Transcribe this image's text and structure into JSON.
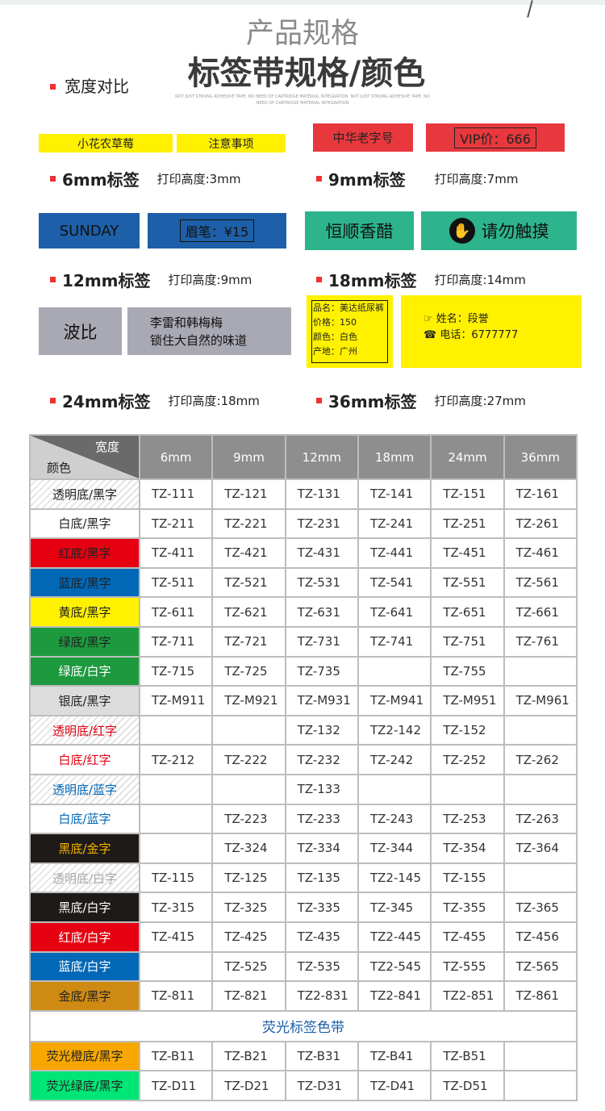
{
  "header": {
    "title": "产品规格",
    "subtitle": "标签带规格/颜色",
    "tagline": "NOT JUST STRONG ADHESIVE TAPE, NO NEED OF CARTRIDGE MATERIAL INTEGRATION. NOT JUST STRONG ADHESIVE TAPE, NO NEED OF CARTRIDGE MATERIAL INTEGRATION"
  },
  "section_label": "宽度对比",
  "samples": {
    "s6": [
      "小花农草莓",
      "注意事项"
    ],
    "s9": [
      "中华老字号",
      "VIP价：666"
    ],
    "s12": [
      "SUNDAY",
      "眉笔：¥15"
    ],
    "s18": [
      "恒顺香醋",
      "请勿触摸"
    ],
    "s24": [
      "波比",
      "李雷和韩梅梅\n锁住大自然的味道"
    ],
    "s36a": [
      "品名：美达纸尿裤",
      "价格：150",
      "颜色：白色",
      "产地：广州"
    ],
    "s36b": [
      "姓名：段誉",
      "电话：6777777"
    ]
  },
  "captions": [
    {
      "size": "6mm标签",
      "height": "打印高度:3mm"
    },
    {
      "size": "9mm标签",
      "height": "打印高度:7mm"
    },
    {
      "size": "12mm标签",
      "height": "打印高度:9mm"
    },
    {
      "size": "18mm标签",
      "height": "打印高度:14mm"
    },
    {
      "size": "24mm标签",
      "height": "打印高度:18mm"
    },
    {
      "size": "36mm标签",
      "height": "打印高度:27mm"
    }
  ],
  "table": {
    "corner_top": "宽度",
    "corner_bottom": "颜色",
    "columns": [
      "6mm",
      "9mm",
      "12mm",
      "18mm",
      "24mm",
      "36mm"
    ],
    "rows": [
      {
        "label": "透明底/黑字",
        "bg": "stripe",
        "fg": "#222",
        "cells": [
          "TZ-111",
          "TZ-121",
          "TZ-131",
          "TZ-141",
          "TZ-151",
          "TZ-161"
        ]
      },
      {
        "label": "白底/黑字",
        "bg": "#ffffff",
        "fg": "#222",
        "cells": [
          "TZ-211",
          "TZ-221",
          "TZ-231",
          "TZ-241",
          "TZ-251",
          "TZ-261"
        ]
      },
      {
        "label": "红底/黑字",
        "bg": "#e60012",
        "fg": "#222",
        "cells": [
          "TZ-411",
          "TZ-421",
          "TZ-431",
          "TZ-441",
          "TZ-451",
          "TZ-461"
        ]
      },
      {
        "label": "蓝底/黑字",
        "bg": "#0068b7",
        "fg": "#222",
        "cells": [
          "TZ-511",
          "TZ-521",
          "TZ-531",
          "TZ-541",
          "TZ-551",
          "TZ-561"
        ]
      },
      {
        "label": "黄底/黑字",
        "bg": "#fff100",
        "fg": "#222",
        "cells": [
          "TZ-611",
          "TZ-621",
          "TZ-631",
          "TZ-641",
          "TZ-651",
          "TZ-661"
        ]
      },
      {
        "label": "绿底/黑字",
        "bg": "#1d9a3e",
        "fg": "#222",
        "cells": [
          "TZ-711",
          "TZ-721",
          "TZ-731",
          "TZ-741",
          "TZ-751",
          "TZ-761"
        ]
      },
      {
        "label": "绿底/白字",
        "bg": "#1d9a3e",
        "fg": "#fff",
        "cells": [
          "TZ-715",
          "TZ-725",
          "TZ-735",
          "",
          "TZ-755",
          ""
        ]
      },
      {
        "label": "银底/黑字",
        "bg": "#dcdcdc",
        "fg": "#222",
        "cells": [
          "TZ-M911",
          "TZ-M921",
          "TZ-M931",
          "TZ-M941",
          "TZ-M951",
          "TZ-M961"
        ]
      },
      {
        "label": "透明底/红字",
        "bg": "stripe",
        "fg": "#e60012",
        "cells": [
          "",
          "",
          "TZ-132",
          "TZ2-142",
          "TZ-152",
          ""
        ]
      },
      {
        "label": "白底/红字",
        "bg": "#ffffff",
        "fg": "#e60012",
        "cells": [
          "TZ-212",
          "TZ-222",
          "TZ-232",
          "TZ-242",
          "TZ-252",
          "TZ-262"
        ]
      },
      {
        "label": "透明底/蓝字",
        "bg": "stripe",
        "fg": "#0068b7",
        "cells": [
          "",
          "",
          "TZ-133",
          "",
          "",
          ""
        ]
      },
      {
        "label": "白底/蓝字",
        "bg": "#ffffff",
        "fg": "#0068b7",
        "cells": [
          "",
          "TZ-223",
          "TZ-233",
          "TZ-243",
          "TZ-253",
          "TZ-263"
        ]
      },
      {
        "label": "黑底/金字",
        "bg": "#1e1a17",
        "fg": "#f5b300",
        "cells": [
          "",
          "TZ-324",
          "TZ-334",
          "TZ-344",
          "TZ-354",
          "TZ-364"
        ]
      },
      {
        "label": "透明底/白字",
        "bg": "stripe",
        "fg": "#aaa",
        "cells": [
          "TZ-115",
          "TZ-125",
          "TZ-135",
          "TZ2-145",
          "TZ-155",
          ""
        ]
      },
      {
        "label": "黑底/白字",
        "bg": "#1e1a17",
        "fg": "#fff",
        "cells": [
          "TZ-315",
          "TZ-325",
          "TZ-335",
          "TZ-345",
          "TZ-355",
          "TZ-365"
        ]
      },
      {
        "label": "红底/白字",
        "bg": "#e60012",
        "fg": "#fff",
        "cells": [
          "TZ-415",
          "TZ-425",
          "TZ-435",
          "TZ2-445",
          "TZ-455",
          "TZ-456"
        ]
      },
      {
        "label": "蓝底/白字",
        "bg": "#0068b7",
        "fg": "#fff",
        "cells": [
          "",
          "TZ-525",
          "TZ-535",
          "TZ2-545",
          "TZ-555",
          "TZ-565"
        ]
      },
      {
        "label": "金底/黑字",
        "bg": "#cf8a13",
        "fg": "#222",
        "cells": [
          "TZ-811",
          "TZ-821",
          "TZ2-831",
          "TZ2-841",
          "TZ2-851",
          "TZ-861"
        ]
      }
    ],
    "section": "荧光标签色带",
    "fluo_rows": [
      {
        "label": "荧光橙底/黑字",
        "bg": "#f7a700",
        "fg": "#222",
        "cells": [
          "TZ-B11",
          "TZ-B21",
          "TZ-B31",
          "TZ-B41",
          "TZ-B51",
          ""
        ]
      },
      {
        "label": "荧光绿底/黑字",
        "bg": "#00e676",
        "fg": "#222",
        "cells": [
          "TZ-D11",
          "TZ-D21",
          "TZ-D31",
          "TZ-D41",
          "TZ-D51",
          ""
        ]
      }
    ]
  }
}
